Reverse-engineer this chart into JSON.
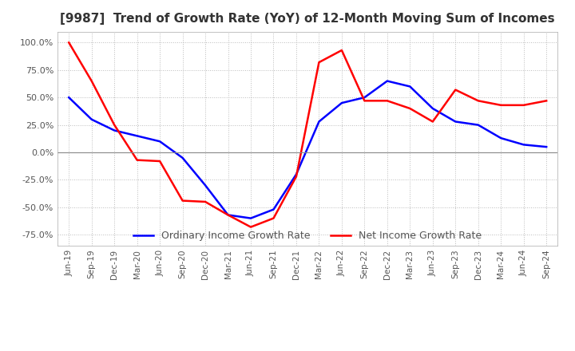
{
  "title": "[9987]  Trend of Growth Rate (YoY) of 12-Month Moving Sum of Incomes",
  "title_fontsize": 11,
  "background_color": "#ffffff",
  "plot_bg_color": "#ffffff",
  "grid_color": "#bbbbbb",
  "ylim": [
    -0.85,
    1.1
  ],
  "yticks": [
    -0.75,
    -0.5,
    -0.25,
    0.0,
    0.25,
    0.5,
    0.75,
    1.0
  ],
  "legend_labels": [
    "Ordinary Income Growth Rate",
    "Net Income Growth Rate"
  ],
  "legend_colors": [
    "#0000ff",
    "#ff0000"
  ],
  "x_labels": [
    "Jun-19",
    "Sep-19",
    "Dec-19",
    "Mar-20",
    "Jun-20",
    "Sep-20",
    "Dec-20",
    "Mar-21",
    "Jun-21",
    "Sep-21",
    "Dec-21",
    "Mar-22",
    "Jun-22",
    "Sep-22",
    "Dec-22",
    "Mar-23",
    "Jun-23",
    "Sep-23",
    "Dec-23",
    "Mar-24",
    "Jun-24",
    "Sep-24"
  ],
  "ordinary_income": [
    0.5,
    0.3,
    0.2,
    0.15,
    0.1,
    -0.05,
    -0.3,
    -0.57,
    -0.6,
    -0.52,
    -0.2,
    0.28,
    0.45,
    0.5,
    0.65,
    0.6,
    0.4,
    0.28,
    0.25,
    0.13,
    0.07,
    0.05
  ],
  "net_income": [
    1.0,
    0.65,
    0.25,
    -0.07,
    -0.08,
    -0.44,
    -0.45,
    -0.57,
    -0.68,
    -0.6,
    -0.22,
    0.82,
    0.93,
    0.47,
    0.47,
    0.4,
    0.28,
    0.57,
    0.47,
    0.43,
    0.43,
    0.47
  ]
}
